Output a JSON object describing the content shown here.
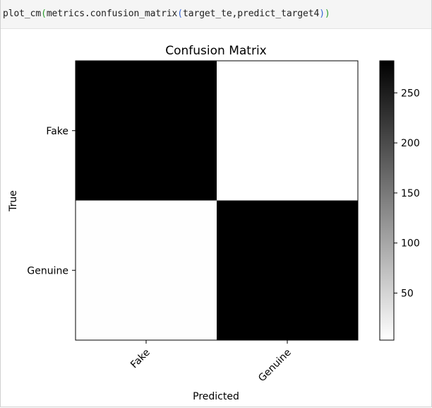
{
  "code": {
    "func": "plot_cm",
    "arg_prefix": "metrics.confusion_matrix",
    "arg_inner": "target_te,predict_target4"
  },
  "chart_data": {
    "type": "heatmap",
    "title": "Confusion Matrix",
    "xlabel": "Predicted",
    "ylabel": "True",
    "x_categories": [
      "Fake",
      "Genuine"
    ],
    "y_categories": [
      "Fake",
      "Genuine"
    ],
    "values": [
      [
        282,
        3
      ],
      [
        4,
        282
      ]
    ],
    "colormap": "gray_r",
    "colorbar": {
      "range": [
        3,
        282
      ],
      "ticks": [
        50,
        100,
        150,
        200,
        250
      ]
    },
    "x_tick_rotation": 45
  }
}
